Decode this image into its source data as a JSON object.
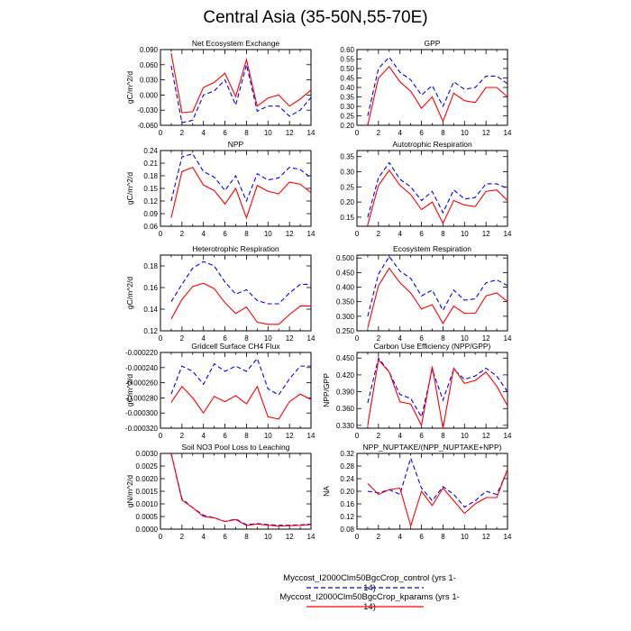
{
  "title": "Central Asia (35-50N,55-70E)",
  "colors": {
    "control": "#0000ff",
    "kparams": "#ff0000"
  },
  "legend": [
    {
      "label": "Myccost_I2000Clm50BgcCrop_control (yrs 1-14)",
      "style": "dashed",
      "color": "#0000ff"
    },
    {
      "label": "Myccost_I2000Clm50BgcCrop_kparams (yrs 1-14)",
      "style": "solid",
      "color": "#ff0000"
    }
  ],
  "chart_data": [
    {
      "type": "line",
      "title": "Net Ecosystem Exchange",
      "ylabel": "gC/m^2/d",
      "x": [
        1,
        2,
        3,
        4,
        5,
        6,
        7,
        8,
        9,
        10,
        11,
        12,
        13,
        14
      ],
      "xlim": [
        0,
        14
      ],
      "xticks": [
        "0",
        "2",
        "4",
        "6",
        "8",
        "10",
        "12",
        "14"
      ],
      "ylim": [
        -0.06,
        0.09
      ],
      "yticks": [
        -0.06,
        -0.03,
        0.0,
        0.03,
        0.06,
        0.09
      ],
      "yticklabels": [
        "-0.060",
        "-0.030",
        "0.000",
        "0.030",
        "0.060",
        "0.090"
      ],
      "series": [
        {
          "name": "control",
          "values": [
            0.058,
            -0.055,
            -0.05,
            0.0,
            0.008,
            0.03,
            -0.02,
            0.06,
            -0.032,
            -0.022,
            -0.022,
            -0.042,
            -0.03,
            -0.005
          ]
        },
        {
          "name": "kparams",
          "values": [
            0.083,
            -0.035,
            -0.033,
            0.015,
            0.025,
            0.043,
            -0.003,
            0.07,
            -0.022,
            -0.006,
            0.0,
            -0.022,
            -0.008,
            0.01
          ]
        }
      ]
    },
    {
      "type": "line",
      "title": "GPP",
      "ylabel": "",
      "x": [
        1,
        2,
        3,
        4,
        5,
        6,
        7,
        8,
        9,
        10,
        11,
        12,
        13,
        14
      ],
      "xlim": [
        0,
        14
      ],
      "xticks": [
        "0",
        "2",
        "4",
        "6",
        "8",
        "10",
        "12",
        "14"
      ],
      "ylim": [
        0.2,
        0.6
      ],
      "yticks": [
        0.2,
        0.25,
        0.3,
        0.35,
        0.4,
        0.45,
        0.5,
        0.55,
        0.6
      ],
      "yticklabels": [
        "0.20",
        "0.25",
        "0.30",
        "0.35",
        "0.40",
        "0.45",
        "0.50",
        "0.55",
        "0.60"
      ],
      "series": [
        {
          "name": "control",
          "values": [
            0.25,
            0.5,
            0.56,
            0.48,
            0.44,
            0.36,
            0.41,
            0.3,
            0.43,
            0.39,
            0.4,
            0.46,
            0.46,
            0.42
          ]
        },
        {
          "name": "kparams",
          "values": [
            0.2,
            0.45,
            0.51,
            0.43,
            0.38,
            0.29,
            0.35,
            0.22,
            0.37,
            0.33,
            0.32,
            0.4,
            0.4,
            0.35
          ]
        }
      ]
    },
    {
      "type": "line",
      "title": "NPP",
      "ylabel": "gC/m^2/d",
      "x": [
        1,
        2,
        3,
        4,
        5,
        6,
        7,
        8,
        9,
        10,
        11,
        12,
        13,
        14
      ],
      "xlim": [
        0,
        14
      ],
      "xticks": [
        "0",
        "2",
        "4",
        "6",
        "8",
        "10",
        "12",
        "14"
      ],
      "ylim": [
        0.06,
        0.24
      ],
      "yticks": [
        0.06,
        0.09,
        0.12,
        0.15,
        0.18,
        0.21,
        0.24
      ],
      "yticklabels": [
        "0.06",
        "0.09",
        "0.12",
        "0.15",
        "0.18",
        "0.21",
        "0.24"
      ],
      "series": [
        {
          "name": "control",
          "values": [
            0.12,
            0.225,
            0.232,
            0.19,
            0.177,
            0.145,
            0.18,
            0.12,
            0.185,
            0.17,
            0.175,
            0.2,
            0.195,
            0.175
          ]
        },
        {
          "name": "kparams",
          "values": [
            0.08,
            0.19,
            0.2,
            0.158,
            0.145,
            0.113,
            0.15,
            0.08,
            0.157,
            0.143,
            0.137,
            0.165,
            0.16,
            0.14
          ]
        }
      ]
    },
    {
      "type": "line",
      "title": "Autotrophic Respiration",
      "ylabel": "",
      "x": [
        1,
        2,
        3,
        4,
        5,
        6,
        7,
        8,
        9,
        10,
        11,
        12,
        13,
        14
      ],
      "xlim": [
        0,
        14
      ],
      "xticks": [
        "0",
        "2",
        "4",
        "6",
        "8",
        "10",
        "12",
        "14"
      ],
      "ylim": [
        0.12,
        0.37
      ],
      "yticks": [
        0.15,
        0.2,
        0.25,
        0.3,
        0.35
      ],
      "yticklabels": [
        "0.15",
        "0.20",
        "0.25",
        "0.30",
        "0.35"
      ],
      "series": [
        {
          "name": "control",
          "values": [
            0.15,
            0.28,
            0.33,
            0.275,
            0.25,
            0.205,
            0.235,
            0.165,
            0.24,
            0.21,
            0.215,
            0.26,
            0.26,
            0.245
          ]
        },
        {
          "name": "kparams",
          "values": [
            0.125,
            0.255,
            0.305,
            0.255,
            0.225,
            0.175,
            0.2,
            0.13,
            0.205,
            0.19,
            0.185,
            0.235,
            0.24,
            0.205
          ]
        }
      ]
    },
    {
      "type": "line",
      "title": "Heterotrophic Respiration",
      "ylabel": "gC/m^2/d",
      "x": [
        1,
        2,
        3,
        4,
        5,
        6,
        7,
        8,
        9,
        10,
        11,
        12,
        13,
        14
      ],
      "xlim": [
        0,
        14
      ],
      "xticks": [
        "0",
        "2",
        "4",
        "6",
        "8",
        "10",
        "12",
        "14"
      ],
      "ylim": [
        0.12,
        0.19
      ],
      "yticks": [
        0.12,
        0.14,
        0.16,
        0.18
      ],
      "yticklabels": [
        "0.12",
        "0.14",
        "0.16",
        "0.18"
      ],
      "series": [
        {
          "name": "control",
          "values": [
            0.147,
            0.163,
            0.178,
            0.184,
            0.18,
            0.165,
            0.154,
            0.158,
            0.148,
            0.145,
            0.145,
            0.155,
            0.163,
            0.163
          ]
        },
        {
          "name": "kparams",
          "values": [
            0.131,
            0.149,
            0.161,
            0.164,
            0.159,
            0.146,
            0.136,
            0.142,
            0.128,
            0.126,
            0.126,
            0.135,
            0.143,
            0.143
          ]
        }
      ]
    },
    {
      "type": "line",
      "title": "Ecosystem Respiration",
      "ylabel": "",
      "x": [
        1,
        2,
        3,
        4,
        5,
        6,
        7,
        8,
        9,
        10,
        11,
        12,
        13,
        14
      ],
      "xlim": [
        0,
        14
      ],
      "xticks": [
        "0",
        "2",
        "4",
        "6",
        "8",
        "10",
        "12",
        "14"
      ],
      "ylim": [
        0.25,
        0.51
      ],
      "yticks": [
        0.25,
        0.3,
        0.35,
        0.4,
        0.45,
        0.5
      ],
      "yticklabels": [
        "0.250",
        "0.300",
        "0.350",
        "0.400",
        "0.450",
        "0.500"
      ],
      "series": [
        {
          "name": "control",
          "values": [
            0.3,
            0.445,
            0.505,
            0.455,
            0.43,
            0.37,
            0.39,
            0.32,
            0.39,
            0.355,
            0.36,
            0.415,
            0.425,
            0.405
          ]
        },
        {
          "name": "kparams",
          "values": [
            0.26,
            0.405,
            0.465,
            0.415,
            0.38,
            0.325,
            0.34,
            0.275,
            0.335,
            0.31,
            0.31,
            0.37,
            0.38,
            0.35
          ]
        }
      ]
    },
    {
      "type": "line",
      "title": "Gridcell Surface CH4 Flux",
      "ylabel": "gC/m^2/d",
      "x": [
        1,
        2,
        3,
        4,
        5,
        6,
        7,
        8,
        9,
        10,
        11,
        12,
        13,
        14
      ],
      "xlim": [
        0,
        14
      ],
      "xticks": [
        "0",
        "2",
        "4",
        "6",
        "8",
        "10",
        "12",
        "14"
      ],
      "ylim": [
        -0.00032,
        -0.00022
      ],
      "yticks": [
        -0.00032,
        -0.0003,
        -0.00028,
        -0.00026,
        -0.00024,
        -0.00022
      ],
      "yticklabels": [
        "-0.000320",
        "-0.000300",
        "-0.000280",
        "-0.000260",
        "-0.000240",
        "-0.000220"
      ],
      "series": [
        {
          "name": "control",
          "values": [
            -0.000275,
            -0.000238,
            -0.000245,
            -0.000262,
            -0.000235,
            -0.000245,
            -0.000238,
            -0.000245,
            -0.000228,
            -0.000268,
            -0.000276,
            -0.000255,
            -0.000238,
            -0.000238
          ]
        },
        {
          "name": "kparams",
          "values": [
            -0.000286,
            -0.000265,
            -0.00028,
            -0.0003,
            -0.000278,
            -0.000285,
            -0.000277,
            -0.000288,
            -0.000265,
            -0.000305,
            -0.000308,
            -0.000285,
            -0.000275,
            -0.000282
          ]
        }
      ]
    },
    {
      "type": "line",
      "title": "Carbon Use Efficiency (NPP/GPP)",
      "ylabel": "NPP/GPP",
      "x": [
        1,
        2,
        3,
        4,
        5,
        6,
        7,
        8,
        9,
        10,
        11,
        12,
        13,
        14
      ],
      "xlim": [
        0,
        14
      ],
      "xticks": [
        "0",
        "2",
        "4",
        "6",
        "8",
        "10",
        "12",
        "14"
      ],
      "ylim": [
        0.325,
        0.46
      ],
      "yticks": [
        0.33,
        0.36,
        0.39,
        0.42,
        0.45
      ],
      "yticklabels": [
        "0.330",
        "0.360",
        "0.390",
        "0.420",
        "0.450"
      ],
      "series": [
        {
          "name": "control",
          "values": [
            0.37,
            0.45,
            0.425,
            0.385,
            0.378,
            0.345,
            0.43,
            0.375,
            0.43,
            0.412,
            0.418,
            0.432,
            0.418,
            0.39
          ]
        },
        {
          "name": "kparams",
          "values": [
            0.33,
            0.447,
            0.425,
            0.372,
            0.368,
            0.33,
            0.435,
            0.325,
            0.432,
            0.405,
            0.41,
            0.425,
            0.4,
            0.365
          ]
        }
      ]
    },
    {
      "type": "line",
      "title": "Soil NO3 Pool Loss to Leaching",
      "ylabel": "gN/m^2/d",
      "x": [
        1,
        2,
        3,
        4,
        5,
        6,
        7,
        8,
        9,
        10,
        11,
        12,
        13,
        14
      ],
      "xlim": [
        0,
        14
      ],
      "xticks": [
        "0",
        "2",
        "4",
        "6",
        "8",
        "10",
        "12",
        "14"
      ],
      "ylim": [
        0,
        0.003
      ],
      "yticks": [
        0,
        0.0005,
        0.001,
        0.0015,
        0.002,
        0.0025,
        0.003
      ],
      "yticklabels": [
        "0.0000",
        "0.0005",
        "0.0010",
        "0.0015",
        "0.0020",
        "0.0025",
        "0.0030"
      ],
      "series": [
        {
          "name": "control",
          "values": [
            0.003,
            0.0012,
            0.00085,
            0.00055,
            0.00045,
            0.0003,
            0.0004,
            0.00018,
            0.00022,
            0.00018,
            0.00015,
            0.00016,
            0.00017,
            0.0002
          ]
        },
        {
          "name": "kparams",
          "values": [
            0.003,
            0.00115,
            0.00085,
            0.0005,
            0.00045,
            0.0003,
            0.00038,
            0.00015,
            0.0002,
            0.00016,
            0.00012,
            0.00014,
            0.00015,
            0.00018
          ]
        }
      ]
    },
    {
      "type": "line",
      "title": "NPP_NUPTAKE/(NPP_NUPTAKE+NPP)",
      "ylabel": "NA",
      "x": [
        1,
        2,
        3,
        4,
        5,
        6,
        7,
        8,
        9,
        10,
        11,
        12,
        13,
        14
      ],
      "xlim": [
        0,
        14
      ],
      "xticks": [
        "0",
        "2",
        "4",
        "6",
        "8",
        "10",
        "12",
        "14"
      ],
      "ylim": [
        0.08,
        0.32
      ],
      "yticks": [
        0.08,
        0.12,
        0.16,
        0.2,
        0.24,
        0.28,
        0.32
      ],
      "yticklabels": [
        "0.08",
        "0.12",
        "0.16",
        "0.20",
        "0.24",
        "0.28",
        "0.32"
      ],
      "series": [
        {
          "name": "control",
          "values": [
            0.2,
            0.195,
            0.205,
            0.19,
            0.305,
            0.21,
            0.17,
            0.215,
            0.19,
            0.15,
            0.17,
            0.2,
            0.19,
            0.265
          ]
        },
        {
          "name": "kparams",
          "values": [
            0.225,
            0.19,
            0.205,
            0.21,
            0.09,
            0.2,
            0.155,
            0.21,
            0.17,
            0.13,
            0.16,
            0.18,
            0.18,
            0.27
          ]
        }
      ]
    }
  ]
}
